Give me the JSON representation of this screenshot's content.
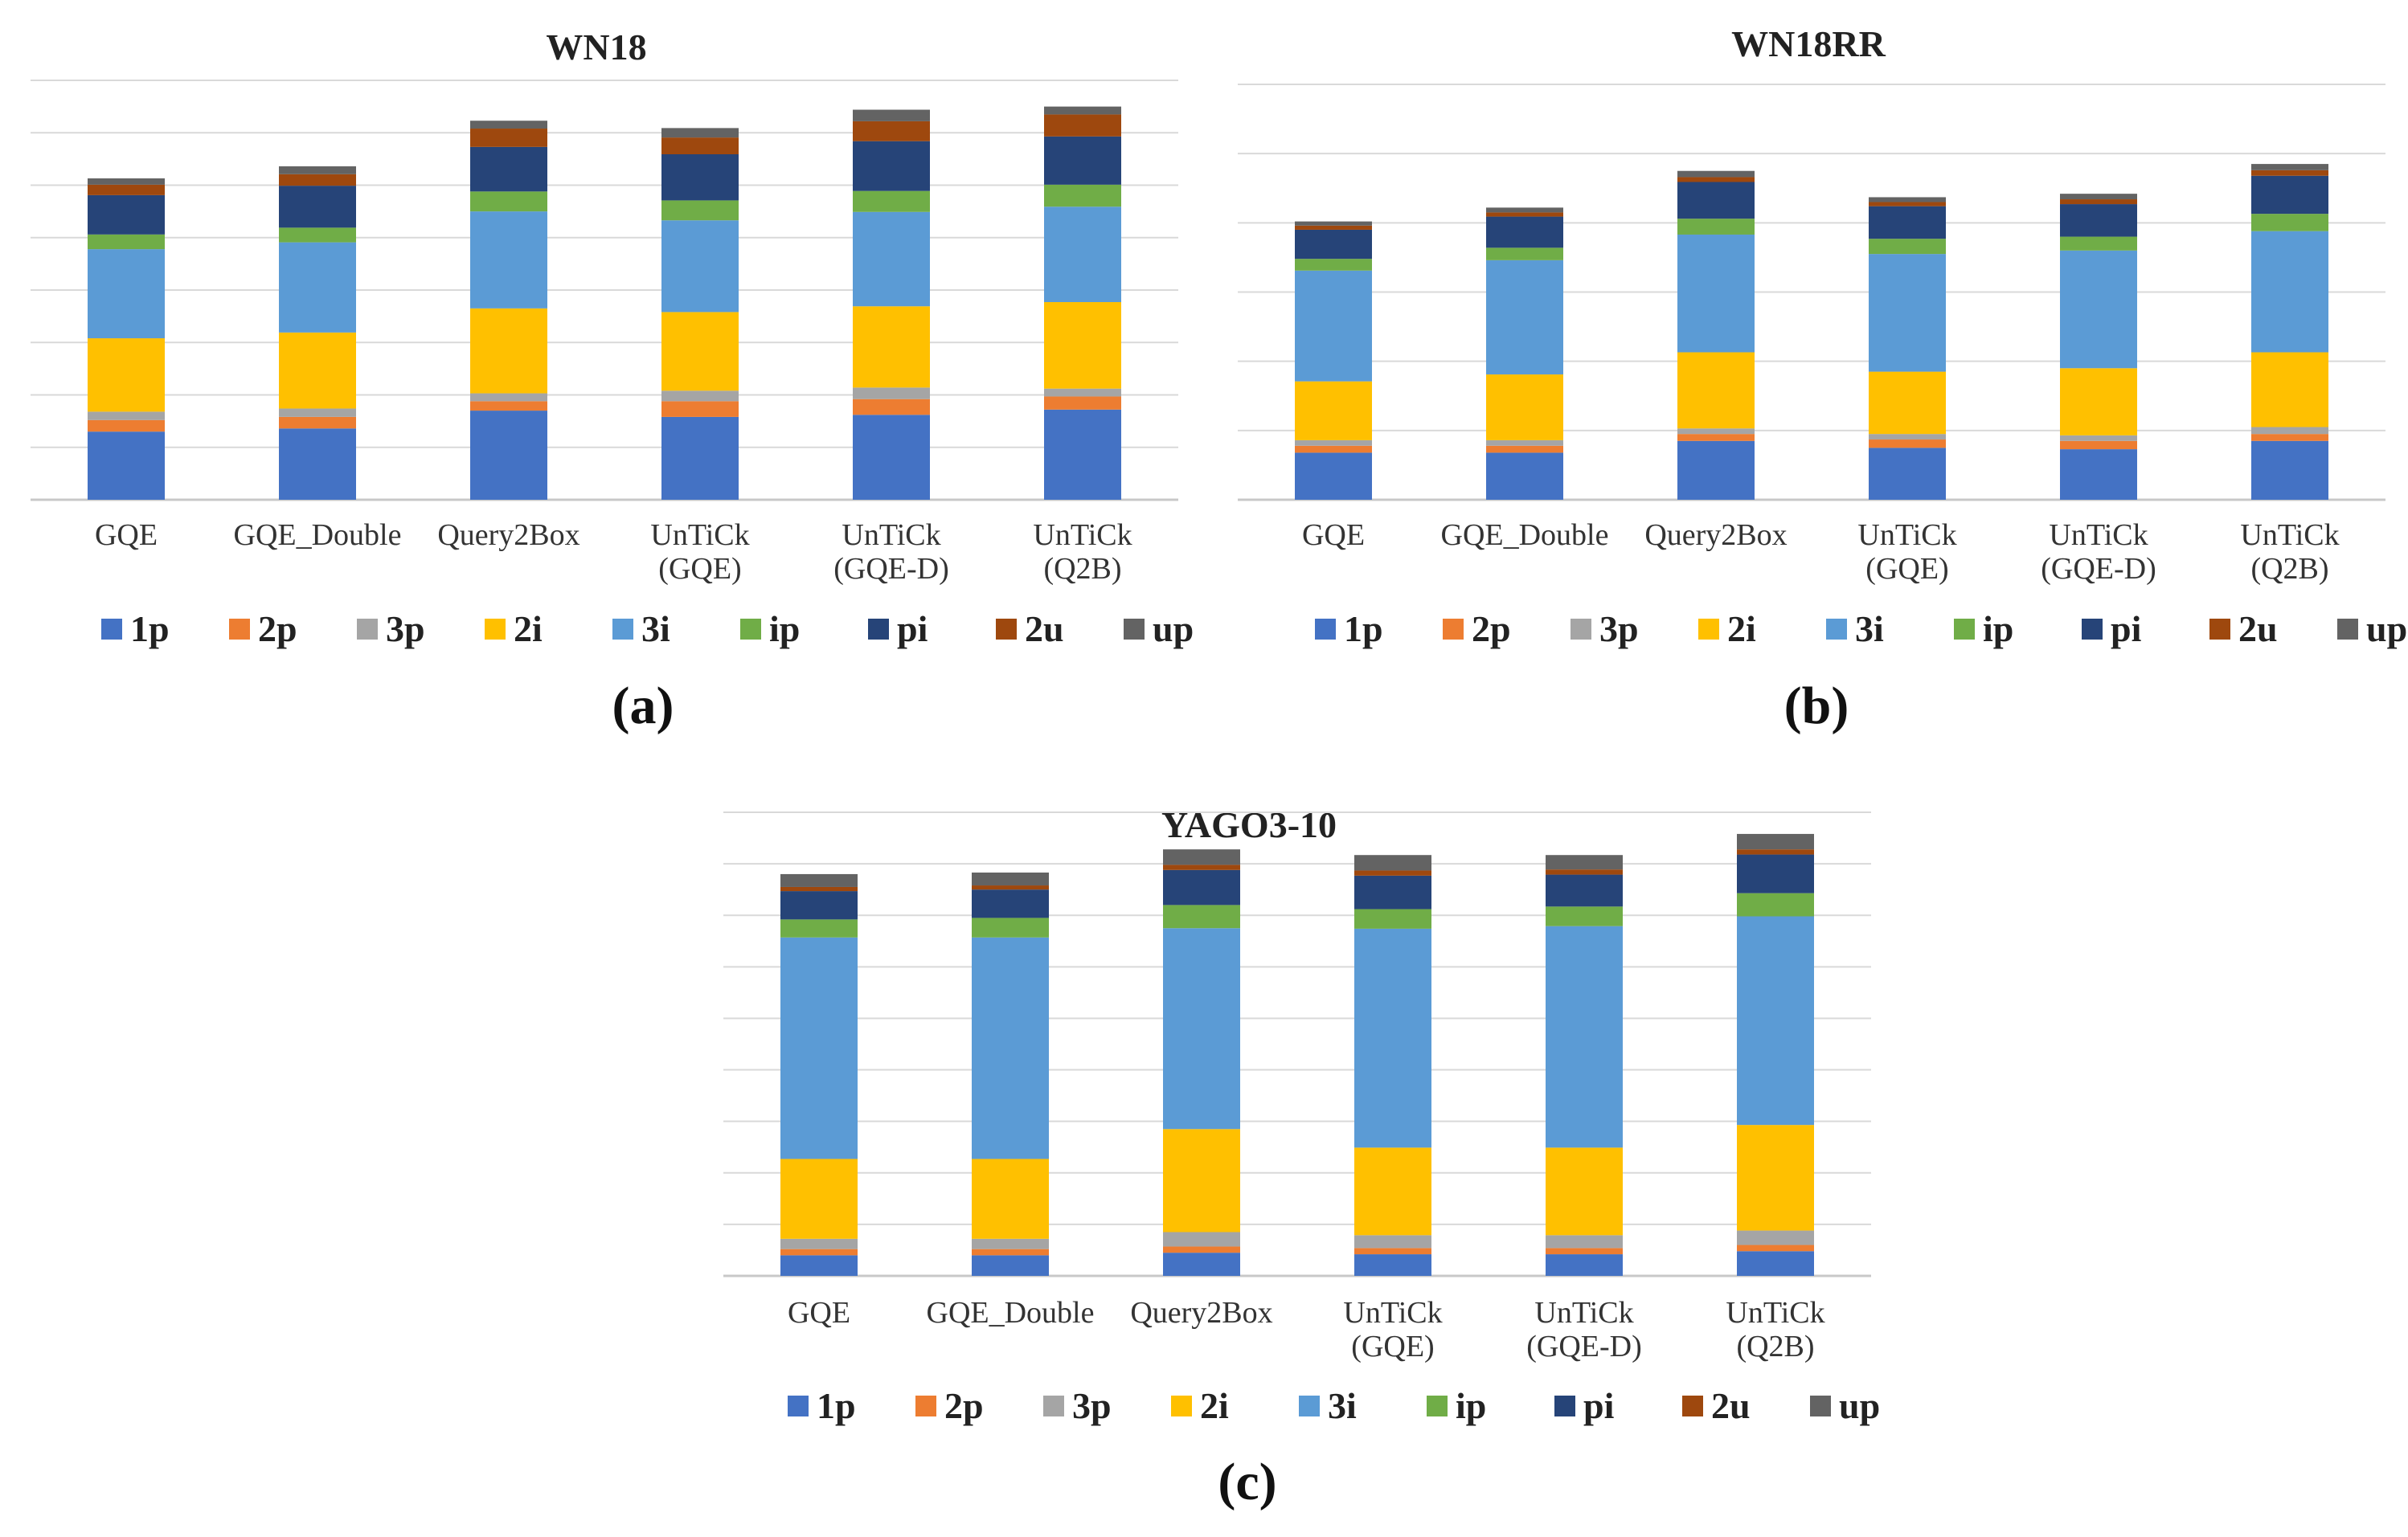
{
  "chart_data": [
    {
      "type": "bar",
      "stacked": true,
      "title": "WN18",
      "panel_label": "(a)",
      "categories": [
        [
          "GQE"
        ],
        [
          "GQE_Double"
        ],
        [
          "Query2Box"
        ],
        [
          "UnTiCk",
          "(GQE)"
        ],
        [
          "UnTiCk",
          "(GQE-D)"
        ],
        [
          "UnTiCk",
          "(Q2B)"
        ]
      ],
      "ylim": [
        0,
        8
      ],
      "gridlines": 8,
      "grid": true,
      "legend_position": "bottom",
      "series": [
        {
          "name": "1p",
          "color": "#4472C4",
          "values": [
            1.3,
            1.36,
            1.7,
            1.58,
            1.62,
            1.72
          ]
        },
        {
          "name": "2p",
          "color": "#ED7D31",
          "values": [
            0.22,
            0.22,
            0.18,
            0.3,
            0.3,
            0.25
          ]
        },
        {
          "name": "3p",
          "color": "#A5A5A5",
          "values": [
            0.16,
            0.16,
            0.15,
            0.2,
            0.22,
            0.15
          ]
        },
        {
          "name": "2i",
          "color": "#FFC000",
          "values": [
            1.4,
            1.45,
            1.62,
            1.5,
            1.55,
            1.65
          ]
        },
        {
          "name": "3i",
          "color": "#5B9BD5",
          "values": [
            1.7,
            1.72,
            1.85,
            1.75,
            1.8,
            1.82
          ]
        },
        {
          "name": "ip",
          "color": "#70AD47",
          "values": [
            0.28,
            0.28,
            0.38,
            0.38,
            0.4,
            0.42
          ]
        },
        {
          "name": "pi",
          "color": "#264478",
          "values": [
            0.75,
            0.8,
            0.85,
            0.88,
            0.95,
            0.92
          ]
        },
        {
          "name": "2u",
          "color": "#9E480E",
          "values": [
            0.2,
            0.22,
            0.35,
            0.32,
            0.38,
            0.42
          ]
        },
        {
          "name": "up",
          "color": "#636363",
          "values": [
            0.12,
            0.15,
            0.15,
            0.18,
            0.22,
            0.15
          ]
        }
      ]
    },
    {
      "type": "bar",
      "stacked": true,
      "title": "WN18RR",
      "panel_label": "(b)",
      "categories": [
        [
          "GQE"
        ],
        [
          "GQE_Double"
        ],
        [
          "Query2Box"
        ],
        [
          "UnTiCk",
          "(GQE)"
        ],
        [
          "UnTiCk",
          "(GQE-D)"
        ],
        [
          "UnTiCk",
          "(Q2B)"
        ]
      ],
      "ylim": [
        0,
        6
      ],
      "gridlines": 6,
      "grid": true,
      "legend_position": "bottom",
      "series": [
        {
          "name": "1p",
          "color": "#4472C4",
          "values": [
            0.68,
            0.68,
            0.85,
            0.75,
            0.73,
            0.85
          ]
        },
        {
          "name": "2p",
          "color": "#ED7D31",
          "values": [
            0.1,
            0.1,
            0.1,
            0.12,
            0.12,
            0.1
          ]
        },
        {
          "name": "3p",
          "color": "#A5A5A5",
          "values": [
            0.08,
            0.08,
            0.08,
            0.08,
            0.08,
            0.1
          ]
        },
        {
          "name": "2i",
          "color": "#FFC000",
          "values": [
            0.85,
            0.95,
            1.1,
            0.9,
            0.97,
            1.08
          ]
        },
        {
          "name": "3i",
          "color": "#5B9BD5",
          "values": [
            1.6,
            1.65,
            1.7,
            1.7,
            1.7,
            1.75
          ]
        },
        {
          "name": "ip",
          "color": "#70AD47",
          "values": [
            0.17,
            0.18,
            0.23,
            0.22,
            0.2,
            0.25
          ]
        },
        {
          "name": "pi",
          "color": "#264478",
          "values": [
            0.42,
            0.45,
            0.53,
            0.47,
            0.47,
            0.55
          ]
        },
        {
          "name": "2u",
          "color": "#9E480E",
          "values": [
            0.06,
            0.06,
            0.07,
            0.06,
            0.07,
            0.08
          ]
        },
        {
          "name": "up",
          "color": "#636363",
          "values": [
            0.06,
            0.07,
            0.09,
            0.07,
            0.08,
            0.09
          ]
        }
      ]
    },
    {
      "type": "bar",
      "stacked": true,
      "title": "YAGO3-10",
      "panel_label": "(c)",
      "categories": [
        [
          "GQE"
        ],
        [
          "GQE_Double"
        ],
        [
          "Query2Box"
        ],
        [
          "UnTiCk",
          "(GQE)"
        ],
        [
          "UnTiCk",
          "(GQE-D)"
        ],
        [
          "UnTiCk",
          "(Q2B)"
        ]
      ],
      "ylim": [
        0,
        9
      ],
      "gridlines": 9,
      "grid": true,
      "legend_position": "bottom",
      "series": [
        {
          "name": "1p",
          "color": "#4472C4",
          "values": [
            0.4,
            0.4,
            0.45,
            0.42,
            0.42,
            0.48
          ]
        },
        {
          "name": "2p",
          "color": "#ED7D31",
          "values": [
            0.12,
            0.12,
            0.12,
            0.12,
            0.12,
            0.12
          ]
        },
        {
          "name": "3p",
          "color": "#A5A5A5",
          "values": [
            0.2,
            0.2,
            0.28,
            0.25,
            0.25,
            0.28
          ]
        },
        {
          "name": "2i",
          "color": "#FFC000",
          "values": [
            1.55,
            1.55,
            2.0,
            1.7,
            1.7,
            2.05
          ]
        },
        {
          "name": "3i",
          "color": "#5B9BD5",
          "values": [
            4.3,
            4.3,
            3.9,
            4.25,
            4.3,
            4.05
          ]
        },
        {
          "name": "ip",
          "color": "#70AD47",
          "values": [
            0.35,
            0.38,
            0.45,
            0.38,
            0.38,
            0.45
          ]
        },
        {
          "name": "pi",
          "color": "#264478",
          "values": [
            0.55,
            0.55,
            0.68,
            0.65,
            0.62,
            0.75
          ]
        },
        {
          "name": "2u",
          "color": "#9E480E",
          "values": [
            0.08,
            0.08,
            0.1,
            0.1,
            0.1,
            0.1
          ]
        },
        {
          "name": "up",
          "color": "#636363",
          "values": [
            0.25,
            0.25,
            0.3,
            0.3,
            0.28,
            0.3
          ]
        }
      ]
    }
  ]
}
